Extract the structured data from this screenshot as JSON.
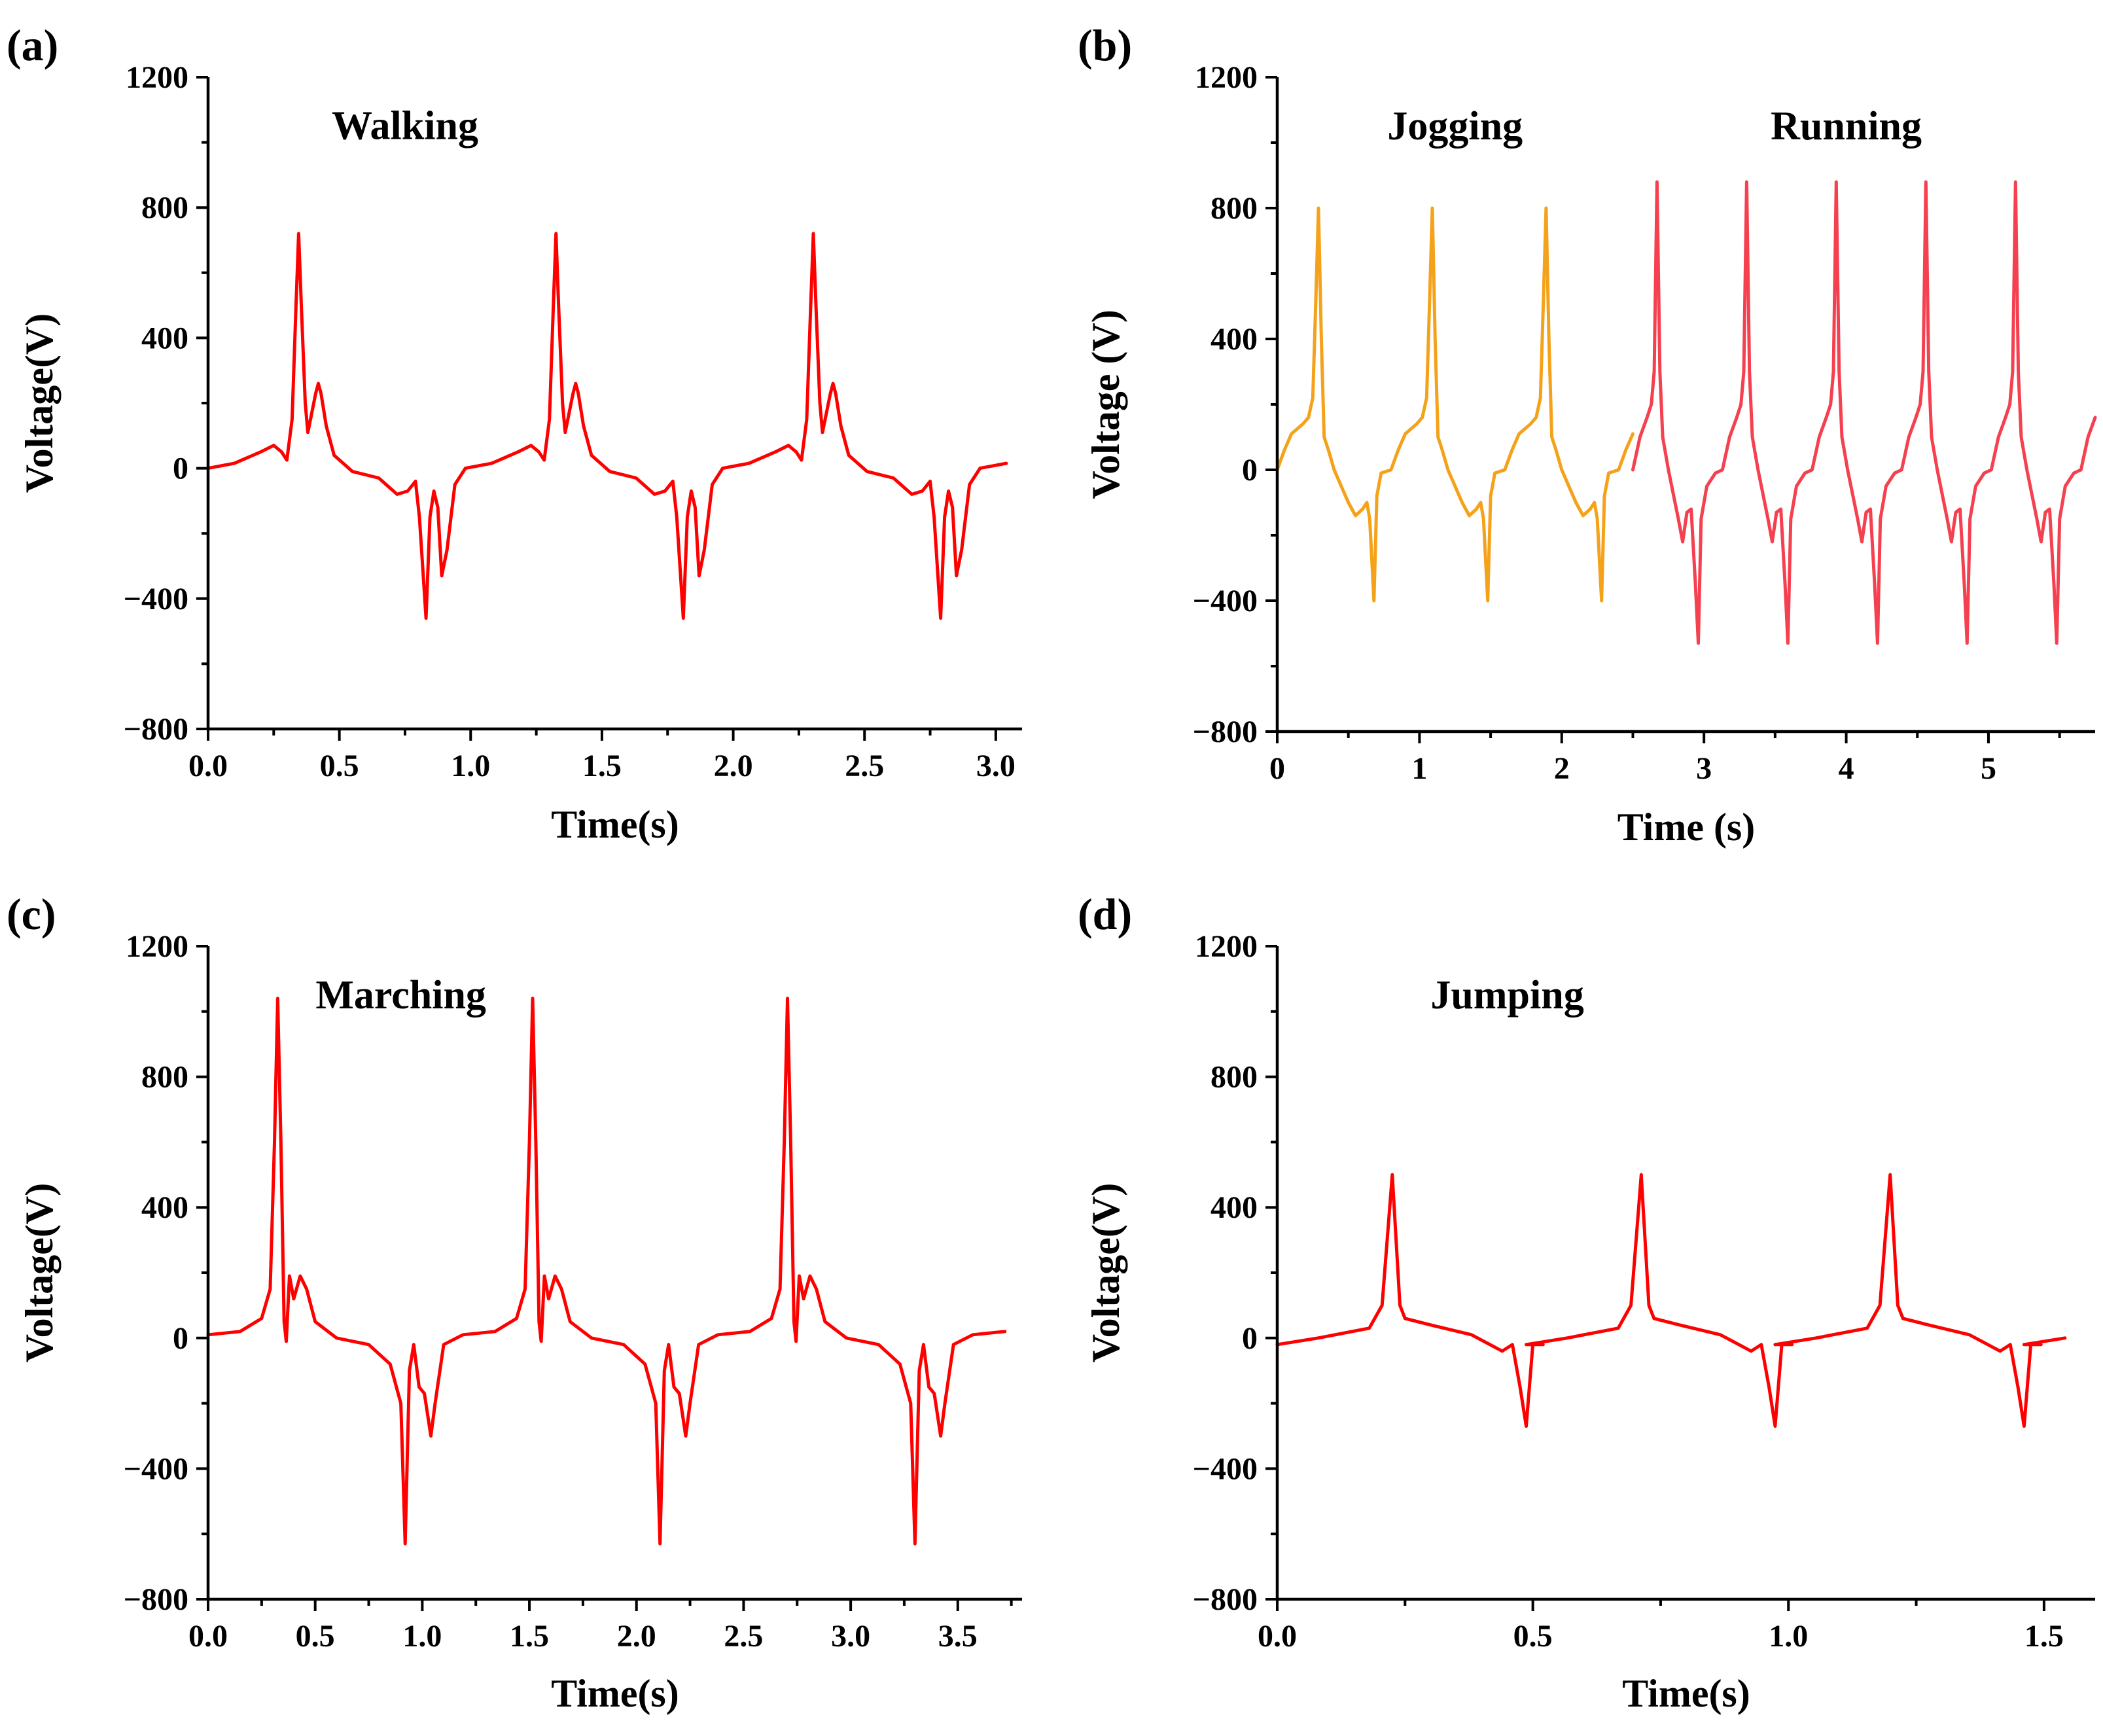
{
  "colors": {
    "red": "#ff0000",
    "orange": "#f5a21b",
    "red_running": "#f5404f",
    "axis": "#000000"
  },
  "chart_data": [
    {
      "type": "line",
      "panel_label": "(a)",
      "xlabel": "Time(s)",
      "ylabel": "Voltage(V)",
      "xlim": [
        0,
        3.1
      ],
      "ylim": [
        -800,
        1200
      ],
      "xticks": [
        0,
        0.5,
        1,
        1.5,
        2,
        2.5,
        3
      ],
      "xtick_labels": [
        "0.0",
        "0.5",
        "1.0",
        "1.5",
        "2.0",
        "2.5",
        "3.0"
      ],
      "yticks": [
        -800,
        -400,
        0,
        400,
        800,
        1200
      ],
      "ytick_labels": [
        "−800",
        "−400",
        "0",
        "400",
        "800",
        "1200"
      ],
      "annotations": [
        {
          "text": "Walking",
          "x": 0.75,
          "y": 1050
        }
      ],
      "series": [
        {
          "name": "Walking",
          "color": "#ff0000",
          "period": 0.98,
          "x0": 0.0,
          "x_end": 3.1,
          "pattern": [
            [
              0,
              0
            ],
            [
              0.1,
              15
            ],
            [
              0.2,
              50
            ],
            [
              0.25,
              70
            ],
            [
              0.28,
              50
            ],
            [
              0.3,
              25
            ],
            [
              0.32,
              150
            ],
            [
              0.335,
              500
            ],
            [
              0.345,
              720
            ],
            [
              0.355,
              500
            ],
            [
              0.37,
              200
            ],
            [
              0.38,
              110
            ],
            [
              0.41,
              230
            ],
            [
              0.42,
              260
            ],
            [
              0.43,
              230
            ],
            [
              0.45,
              130
            ],
            [
              0.48,
              40
            ],
            [
              0.55,
              -10
            ],
            [
              0.65,
              -30
            ],
            [
              0.72,
              -80
            ],
            [
              0.76,
              -70
            ],
            [
              0.79,
              -40
            ],
            [
              0.805,
              -150
            ],
            [
              0.83,
              -460
            ],
            [
              0.845,
              -150
            ],
            [
              0.86,
              -70
            ],
            [
              0.875,
              -120
            ],
            [
              0.89,
              -330
            ],
            [
              0.91,
              -250
            ],
            [
              0.94,
              -50
            ],
            [
              0.98,
              0
            ]
          ]
        }
      ]
    },
    {
      "type": "line",
      "panel_label": "(b)",
      "xlabel": "Time (s)",
      "ylabel": "Voltage (V)",
      "xlim": [
        0,
        5.75
      ],
      "ylim": [
        -800,
        1200
      ],
      "xticks": [
        0,
        1,
        2,
        3,
        4,
        5
      ],
      "xtick_labels": [
        "0",
        "1",
        "2",
        "3",
        "4",
        "5"
      ],
      "yticks": [
        -800,
        -400,
        0,
        400,
        800,
        1200
      ],
      "ytick_labels": [
        "−800",
        "−400",
        "0",
        "400",
        "800",
        "1200"
      ],
      "annotations": [
        {
          "text": "Jogging",
          "x": 1.25,
          "y": 1050
        },
        {
          "text": "Running",
          "x": 4.0,
          "y": 1050
        }
      ],
      "series": [
        {
          "name": "Jogging",
          "color": "#f5a21b",
          "period": 0.8,
          "x0": 0.0,
          "x_end": 2.5,
          "pattern": [
            [
              0,
              0
            ],
            [
              0.05,
              60
            ],
            [
              0.1,
              110
            ],
            [
              0.18,
              140
            ],
            [
              0.22,
              160
            ],
            [
              0.25,
              220
            ],
            [
              0.27,
              500
            ],
            [
              0.29,
              800
            ],
            [
              0.31,
              400
            ],
            [
              0.33,
              100
            ],
            [
              0.36,
              60
            ],
            [
              0.4,
              0
            ],
            [
              0.5,
              -100
            ],
            [
              0.55,
              -140
            ],
            [
              0.6,
              -120
            ],
            [
              0.63,
              -100
            ],
            [
              0.65,
              -150
            ],
            [
              0.68,
              -400
            ],
            [
              0.7,
              -80
            ],
            [
              0.73,
              -10
            ],
            [
              0.8,
              0
            ]
          ]
        },
        {
          "name": "Running",
          "color": "#f5404f",
          "period": 0.63,
          "x0": 2.5,
          "x_end": 5.75,
          "pattern": [
            [
              0,
              0
            ],
            [
              0.05,
              100
            ],
            [
              0.1,
              160
            ],
            [
              0.13,
              200
            ],
            [
              0.15,
              300
            ],
            [
              0.17,
              880
            ],
            [
              0.19,
              300
            ],
            [
              0.21,
              100
            ],
            [
              0.25,
              0
            ],
            [
              0.32,
              -150
            ],
            [
              0.35,
              -220
            ],
            [
              0.38,
              -130
            ],
            [
              0.41,
              -120
            ],
            [
              0.44,
              -350
            ],
            [
              0.46,
              -530
            ],
            [
              0.48,
              -150
            ],
            [
              0.52,
              -50
            ],
            [
              0.58,
              -10
            ],
            [
              0.63,
              0
            ]
          ]
        }
      ]
    },
    {
      "type": "line",
      "panel_label": "(c)",
      "xlabel": "Time(s)",
      "ylabel": "Voltage(V)",
      "xlim": [
        0,
        3.8
      ],
      "ylim": [
        -800,
        1200
      ],
      "xticks": [
        0,
        0.5,
        1,
        1.5,
        2,
        2.5,
        3,
        3.5
      ],
      "xtick_labels": [
        "0.0",
        "0.5",
        "1.0",
        "1.5",
        "2.0",
        "2.5",
        "3.0",
        "3.5"
      ],
      "yticks": [
        -800,
        -400,
        0,
        400,
        800,
        1200
      ],
      "ytick_labels": [
        "−800",
        "−400",
        "0",
        "400",
        "800",
        "1200"
      ],
      "annotations": [
        {
          "text": "Marching",
          "x": 0.9,
          "y": 1050
        }
      ],
      "series": [
        {
          "name": "Marching",
          "color": "#ff0000",
          "period": 1.19,
          "x0": 0.0,
          "x_end": 3.8,
          "pattern": [
            [
              0,
              10
            ],
            [
              0.15,
              20
            ],
            [
              0.25,
              60
            ],
            [
              0.29,
              150
            ],
            [
              0.31,
              600
            ],
            [
              0.325,
              1040
            ],
            [
              0.34,
              600
            ],
            [
              0.355,
              50
            ],
            [
              0.365,
              -10
            ],
            [
              0.38,
              190
            ],
            [
              0.4,
              120
            ],
            [
              0.43,
              190
            ],
            [
              0.46,
              150
            ],
            [
              0.5,
              50
            ],
            [
              0.6,
              0
            ],
            [
              0.75,
              -20
            ],
            [
              0.85,
              -80
            ],
            [
              0.9,
              -200
            ],
            [
              0.92,
              -630
            ],
            [
              0.94,
              -100
            ],
            [
              0.96,
              -20
            ],
            [
              0.985,
              -150
            ],
            [
              1.01,
              -170
            ],
            [
              1.04,
              -300
            ],
            [
              1.06,
              -200
            ],
            [
              1.1,
              -20
            ],
            [
              1.19,
              10
            ]
          ]
        }
      ]
    },
    {
      "type": "line",
      "panel_label": "(d)",
      "xlabel": "Time(s)",
      "ylabel": "Voltage(V)",
      "xlim": [
        0,
        1.6
      ],
      "ylim": [
        -800,
        1200
      ],
      "xticks": [
        0,
        0.5,
        1,
        1.5
      ],
      "xtick_labels": [
        "0.0",
        "0.5",
        "1.0",
        "1.5"
      ],
      "yticks": [
        -800,
        -400,
        0,
        400,
        800,
        1200
      ],
      "ytick_labels": [
        "−800",
        "−400",
        "0",
        "400",
        "800",
        "1200"
      ],
      "annotations": [
        {
          "text": "Jumping",
          "x": 0.45,
          "y": 1050
        }
      ],
      "series": [
        {
          "name": "Jumping",
          "color": "#ff0000",
          "period": 0.487,
          "x0": 0.0,
          "x_end": 1.6,
          "pattern": [
            [
              0,
              -20
            ],
            [
              0.08,
              0
            ],
            [
              0.18,
              30
            ],
            [
              0.205,
              100
            ],
            [
              0.225,
              500
            ],
            [
              0.24,
              100
            ],
            [
              0.25,
              60
            ],
            [
              0.3,
              40
            ],
            [
              0.38,
              10
            ],
            [
              0.44,
              -40
            ],
            [
              0.46,
              -20
            ],
            [
              0.475,
              -150
            ],
            [
              0.487,
              -270
            ],
            [
              0.5,
              -20
            ],
            [
              0.52,
              -20
            ]
          ]
        }
      ]
    }
  ]
}
